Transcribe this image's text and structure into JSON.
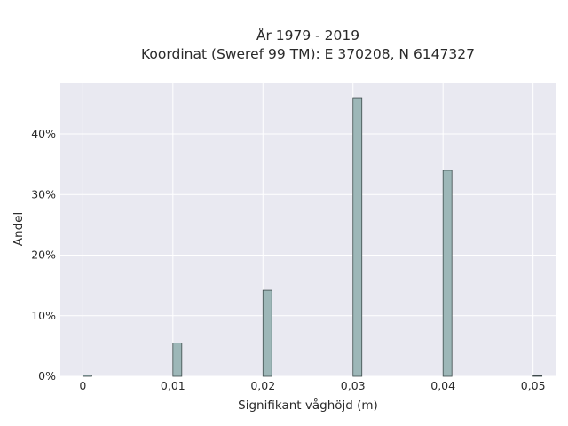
{
  "chart_data": {
    "type": "bar",
    "title_line1": "År 1979 - 2019",
    "title_line2": "Koordinat (Sweref 99 TM): E 370208, N 6147327",
    "xlabel": "Signifikant våghöjd (m)",
    "ylabel": "Andel",
    "x": [
      0,
      0.01,
      0.02,
      0.03,
      0.04,
      0.05
    ],
    "values": [
      0.2,
      5.5,
      14.2,
      46.0,
      34.0,
      0.1
    ],
    "x_ticks": [
      {
        "value": 0,
        "label": "0"
      },
      {
        "value": 0.01,
        "label": "0,01"
      },
      {
        "value": 0.02,
        "label": "0,02"
      },
      {
        "value": 0.03,
        "label": "0,03"
      },
      {
        "value": 0.04,
        "label": "0,04"
      },
      {
        "value": 0.05,
        "label": "0,05"
      }
    ],
    "y_ticks": [
      {
        "value": 0,
        "label": "0%"
      },
      {
        "value": 10,
        "label": "10%"
      },
      {
        "value": 20,
        "label": "20%"
      },
      {
        "value": 30,
        "label": "30%"
      },
      {
        "value": 40,
        "label": "40%"
      }
    ],
    "xlim": [
      -0.0025,
      0.0525
    ],
    "ylim": [
      0,
      48.5
    ],
    "grid": true,
    "colors": {
      "bar_fill": "#9db7b8",
      "bar_stroke": "#3d4a4b",
      "plot_bg": "#e9e9f1",
      "grid": "#ffffff"
    }
  }
}
